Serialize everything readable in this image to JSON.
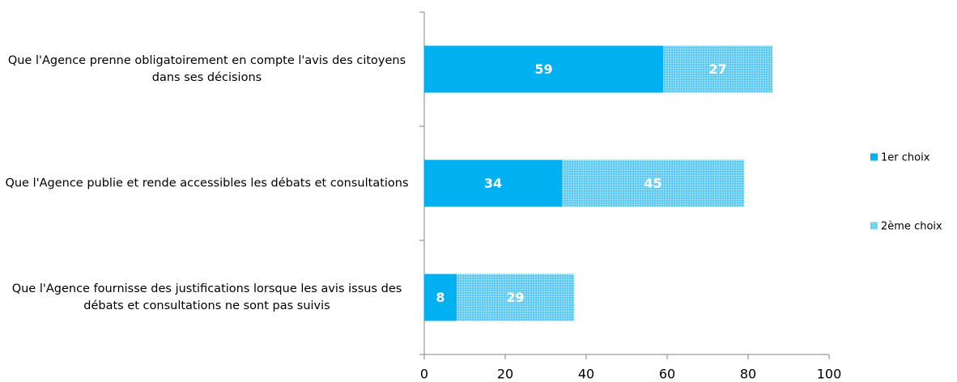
{
  "chart_data": {
    "type": "stacked_bar_horizontal",
    "categories": [
      "Que l'Agence prenne obligatoirement en compte l'avis des citoyens dans ses décisions",
      "Que l'Agence publie et rende accessibles les débats et consultations",
      "Que l'Agence fournisse des justifications lorsque les avis issus des débats et consultations ne sont pas suivis"
    ],
    "series": [
      {
        "name": "1er choix",
        "color": "#00b0f0",
        "values": [
          59,
          34,
          8
        ]
      },
      {
        "name": "2ème choix",
        "color": "#6fd0f5",
        "values": [
          27,
          45,
          29
        ]
      }
    ],
    "xlim": [
      0,
      100
    ],
    "xticks": [
      0,
      20,
      40,
      60,
      80,
      100
    ],
    "legend": "right"
  }
}
